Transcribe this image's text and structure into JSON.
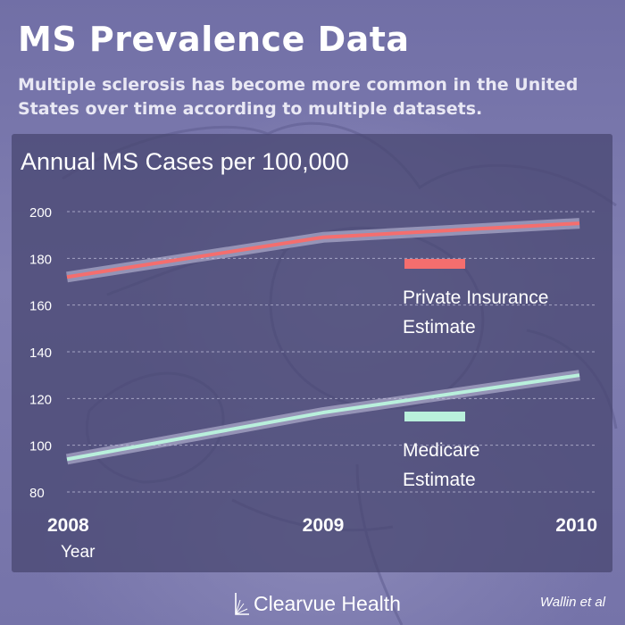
{
  "header": {
    "title": "MS Prevalence Data",
    "subtitle": "Multiple sclerosis has become more common in the United States over time according to multiple datasets."
  },
  "chart_data": {
    "type": "line",
    "title": "Annual MS Cases per 100,000",
    "xlabel": "Year",
    "ylabel": "",
    "x": [
      2008,
      2009,
      2010
    ],
    "ylim": [
      80,
      200
    ],
    "yticks": [
      80,
      100,
      120,
      140,
      160,
      180,
      200
    ],
    "grid": true,
    "series": [
      {
        "name": "Private Insurance Estimate",
        "name_lines": [
          "Private Insurance",
          "Estimate"
        ],
        "values": [
          172,
          189,
          195
        ],
        "color": "#f46e6e"
      },
      {
        "name": "Medicare Estimate",
        "name_lines": [
          "Medicare",
          "Estimate"
        ],
        "values": [
          94,
          114,
          130
        ],
        "color": "#b9f0dc"
      }
    ]
  },
  "footer": {
    "brand": "Clearvue Health",
    "credit": "Wallin et al"
  },
  "colors": {
    "background": "#7b79ad",
    "panel": "#48467085",
    "private_insurance": "#f46e6e",
    "medicare": "#b9f0dc",
    "grid": "#b8b7d4"
  }
}
